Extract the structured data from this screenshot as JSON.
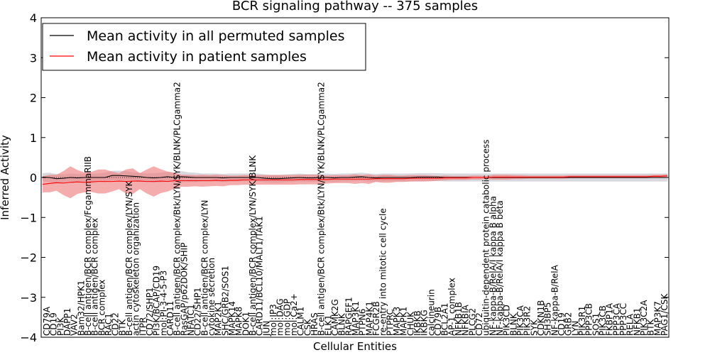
{
  "chart_data": {
    "type": "line",
    "title": "BCR signaling pathway -- 375 samples",
    "xlabel": "Cellular Entities",
    "ylabel": "Inferred Activity",
    "ylim": [
      -4,
      4
    ],
    "yticks": [
      -4,
      -3,
      -2,
      -1,
      0,
      1,
      2,
      3,
      4
    ],
    "legend": {
      "position": "top-left",
      "entries": [
        {
          "label": "Mean activity in all permuted samples",
          "color": "#000000"
        },
        {
          "label": "Mean activity in patient samples",
          "color": "#ff0000"
        }
      ]
    },
    "categories": [
      "CD79A",
      "CD19",
      "PI3K",
      "DAPP1",
      "VAV2",
      "Bam32/HPK1",
      "B-cell antigen/BCR complex/FcgammaRIIB",
      "B-cell antigen/BCR complex",
      "BCR complex",
      "RAC1",
      "CD22",
      "BTK",
      "B-cell antigen/BCR complex/LYN/SYK",
      "actin cytoskeleton organization",
      "ITPR",
      "CD72/SHP1",
      "PI3K/BCAP/CD19",
      "mol:PI-3-4-5-P3",
      "CARD11",
      "B-cell antigen/BCR complex/Btk/LYN/SYK/BLNK/PLCgamma2",
      "RasGAP/p62DOK/SHIP",
      "NFATC1",
      "CD22/SHP1",
      "B-cell antigen/BCR complex/LYN",
      "cytokine secretion",
      "MAP2K1",
      "SHC/GRB2/SOS1",
      "MAPK14",
      "MAPK8",
      "DOK1",
      "B-cell antigen/BCR complex/LYN/SYK/BLNK",
      "CARD11/BCL10/MALT1/TAK1",
      "JUN",
      "mol:IP3",
      "mol:DAG",
      "mol:GDP",
      "mol:Ca2+",
      "CALM1",
      "CSK",
      "HRAS",
      "B-cell antigen/BCR complex/Btk/LYN/SYK/BLNK/PLCgamma2",
      "ELK1",
      "CAMK2G",
      "BLNK",
      "RAPGEF1",
      "MAP3K1",
      "PTPN6",
      "MAP4K1",
      "FCGR2B",
      "re-entry into mitotic cell cycle",
      "PTPRC",
      "MAPK3",
      "MAPK1",
      "CHUK",
      "IKBKB",
      "IKBKG",
      "calcineurin",
      "CD79B",
      "BCL2A1",
      "AP-1 complex",
      "NFKB1B",
      "NFKBIA",
      "PLCG2",
      "CD72",
      "ubiquitin-dependent protein catabolic process",
      "NF-kappa-B/RelA/I kappa B alpha",
      "NF-kappa-B/RelA/I kappa B beta",
      "PIK3CD",
      "BLNK",
      "PIK3CA",
      "PIK3R2",
      "SYK",
      "CDKN1B",
      "SH3BP5",
      "NF-kappa-B/RelA",
      "CD19",
      "GRB2",
      "LYN",
      "PIK3R1",
      "PPP3CB",
      "SOS1",
      "PIK3CB",
      "FKBP1A",
      "PPP3CA",
      "PPP3CC",
      "RELA",
      "NFKB1",
      "PIK3C2A",
      "BTK",
      "MAP3K7",
      "PAG1/CSK"
    ],
    "visible_labels": [
      "CD79A",
      "CD19",
      "PI3K",
      "DAPP1",
      "VAV2",
      "Bam32/HPK1",
      "B-cell antigen/BCR complex/FcgammaRIIB",
      "B-cell antigen/BCR complex",
      "BCR complex",
      "RAC1",
      "CD22",
      "BTK",
      "B-cell antigen/BCR complex/LYN/SYK",
      "actin cytoskeleton organization",
      "ITPR",
      "CD72/SHP1",
      "PI3K/BCAP/CD19",
      "mol:PI-3-4-5-P3",
      "CARD11",
      "B-cell antigen/BCR complex/Btk/LYN/SYK/BLNK/PLCgamma2",
      "RasGAP/p62DOK/SHIP",
      "NFATC1",
      "CD22/SHP1",
      "B-cell antigen/BCR complex/LYN",
      "cytokine secretion",
      "MAP2K1",
      "SHC/GRB2/SOS1",
      "MAPK14",
      "MAPK8",
      "DOK1",
      "B-cell antigen/BCR complex/LYN/SYK/BLNK",
      "CARD11/BCL10/MALT1/TAK1",
      "JUN",
      "mol:IP3",
      "mol:DAG",
      "mol:GDP",
      "mol:Ca2+",
      "CALM1",
      "CSK",
      "HRAS",
      "B-cell antigen/BCR complex/Btk/LYN/SYK/BLNK/PLCgamma2",
      "ELK1",
      "CAMK2G",
      "BLNK",
      "RAPGEF1",
      "MAP3K1",
      "PTPN6",
      "MAP4K1",
      "FCGR2B",
      "re-entry into mitotic cell cycle",
      "PTPRC",
      "MAPK3",
      "MAPK1",
      "CHUK",
      "IKBKB",
      "IKBKG",
      "calcineurin",
      "CD79B",
      "BCL2A1",
      "AP-1 complex",
      "NFKB1B",
      "NFKBIA",
      "PLCG2",
      "CD72",
      "ubiquitin-dependent protein catabolic process",
      "NF-kappa-B/RelA/I kappa B alpha",
      "NF-kappa-B/RelA/I kappa B beta",
      "PIK3CD",
      "BLNK",
      "PIK3CA",
      "PIK3R2",
      "SYK",
      "CDKN1B",
      "SH3BP5",
      "NF-kappa-B/RelA",
      "CD19",
      "GRB2",
      "LYN",
      "PIK3R1",
      "PPP3CB",
      "SOS1",
      "PIK3CB",
      "FKBP1A",
      "PPP3CA",
      "PPP3CC",
      "RELA",
      "NFKB1",
      "PIK3C2A",
      "BTK",
      "MAP3K7",
      "PAG1/CSK"
    ],
    "series": [
      {
        "name": "Mean activity in all permuted samples",
        "color": "#000000",
        "band_color": "#c8c8d2",
        "values": [
          0.01,
          0.0,
          -0.03,
          -0.02,
          0.0,
          -0.01,
          0.0,
          0.0,
          0.0,
          0.0,
          0.05,
          0.05,
          0.04,
          0.03,
          0.02,
          0.0,
          -0.01,
          0.0,
          0.02,
          0.0,
          0.02,
          0.01,
          0.0,
          0.0,
          0.0,
          0.0,
          -0.01,
          0.0,
          0.0,
          0.0,
          0.0,
          0.0,
          -0.02,
          -0.03,
          -0.03,
          -0.02,
          -0.01,
          0.0,
          -0.01,
          -0.01,
          0.0,
          0.0,
          -0.01,
          0.0,
          0.0,
          0.01,
          0.02,
          0.0,
          -0.01,
          0.0,
          0.0,
          0.0,
          0.0,
          0.0,
          0.01,
          0.01,
          0.01,
          0.01,
          0.0,
          0.0,
          0.0,
          0.0,
          0.0,
          0.0,
          0.0,
          0.0,
          0.0,
          0.0,
          0.0,
          0.0,
          0.0,
          0.0,
          0.0,
          0.0,
          0.0,
          0.0,
          0.0,
          0.0,
          0.0,
          0.0,
          0.0,
          0.0,
          0.0,
          0.0,
          0.0,
          0.0,
          0.0,
          0.0,
          0.0,
          0.0,
          0.0
        ],
        "band_half_width": [
          0.1,
          0.12,
          0.12,
          0.1,
          0.1,
          0.1,
          0.1,
          0.1,
          0.1,
          0.12,
          0.12,
          0.12,
          0.12,
          0.1,
          0.1,
          0.1,
          0.12,
          0.12,
          0.12,
          0.12,
          0.14,
          0.12,
          0.12,
          0.1,
          0.1,
          0.1,
          0.1,
          0.1,
          0.1,
          0.1,
          0.1,
          0.1,
          0.1,
          0.1,
          0.1,
          0.1,
          0.1,
          0.1,
          0.1,
          0.1,
          0.1,
          0.1,
          0.1,
          0.1,
          0.1,
          0.1,
          0.1,
          0.1,
          0.1,
          0.1,
          0.1,
          0.1,
          0.1,
          0.1,
          0.1,
          0.1,
          0.1,
          0.1,
          0.1,
          0.1,
          0.1,
          0.1,
          0.1,
          0.1,
          0.1,
          0.1,
          0.1,
          0.1,
          0.1,
          0.1,
          0.1,
          0.1,
          0.1,
          0.1,
          0.1,
          0.1,
          0.1,
          0.1,
          0.1,
          0.1,
          0.1,
          0.1,
          0.1,
          0.1,
          0.1,
          0.1,
          0.1,
          0.1,
          0.1,
          0.1,
          0.1
        ]
      },
      {
        "name": "Mean activity in patient samples",
        "color": "#ff0000",
        "band_color": "#f08080",
        "values": [
          -0.17,
          -0.15,
          -0.13,
          -0.14,
          -0.12,
          -0.11,
          -0.12,
          -0.11,
          -0.1,
          -0.1,
          -0.1,
          -0.09,
          -0.1,
          -0.09,
          -0.09,
          -0.1,
          -0.1,
          -0.09,
          -0.1,
          -0.08,
          -0.08,
          -0.08,
          -0.08,
          -0.08,
          -0.08,
          -0.07,
          -0.08,
          -0.07,
          -0.07,
          -0.06,
          -0.06,
          -0.06,
          -0.06,
          -0.06,
          -0.06,
          -0.06,
          -0.06,
          -0.05,
          -0.05,
          -0.05,
          -0.05,
          -0.05,
          -0.04,
          -0.04,
          -0.04,
          -0.04,
          -0.04,
          -0.04,
          -0.03,
          -0.03,
          -0.03,
          -0.03,
          -0.03,
          -0.02,
          -0.02,
          -0.02,
          -0.02,
          -0.02,
          -0.01,
          -0.01,
          -0.01,
          -0.01,
          0.0,
          0.0,
          0.0,
          0.01,
          0.01,
          0.01,
          0.01,
          0.01,
          0.01,
          0.01,
          0.01,
          0.01,
          0.01,
          0.01,
          0.02,
          0.02,
          0.02,
          0.02,
          0.02,
          0.02,
          0.02,
          0.02,
          0.02,
          0.02,
          0.02,
          0.02,
          0.03,
          0.03,
          0.04
        ],
        "band_half_width": [
          0.2,
          0.22,
          0.2,
          0.3,
          0.4,
          0.3,
          0.25,
          0.25,
          0.3,
          0.3,
          0.25,
          0.2,
          0.3,
          0.32,
          0.2,
          0.3,
          0.38,
          0.3,
          0.25,
          0.2,
          0.15,
          0.15,
          0.14,
          0.15,
          0.14,
          0.14,
          0.14,
          0.12,
          0.12,
          0.12,
          0.12,
          0.12,
          0.12,
          0.12,
          0.12,
          0.12,
          0.12,
          0.12,
          0.12,
          0.12,
          0.12,
          0.1,
          0.1,
          0.1,
          0.1,
          0.12,
          0.1,
          0.12,
          0.08,
          0.1,
          0.1,
          0.08,
          0.08,
          0.08,
          0.08,
          0.08,
          0.07,
          0.06,
          0.06,
          0.05,
          0.05,
          0.05,
          0.05,
          0.05,
          0.04,
          0.06,
          0.06,
          0.06,
          0.05,
          0.05,
          0.04,
          0.04,
          0.04,
          0.04,
          0.04,
          0.04,
          0.04,
          0.04,
          0.04,
          0.04,
          0.04,
          0.04,
          0.04,
          0.04,
          0.04,
          0.04,
          0.04,
          0.04,
          0.04,
          0.04,
          0.04
        ]
      }
    ]
  }
}
